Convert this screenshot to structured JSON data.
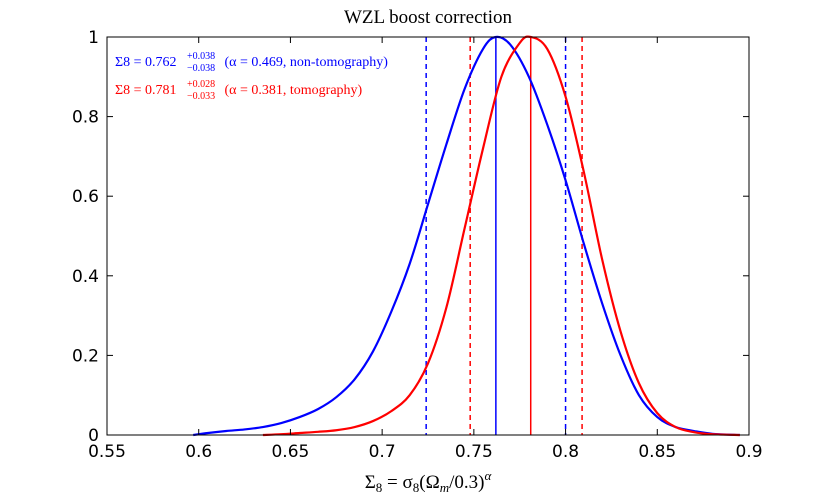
{
  "chart_data": {
    "type": "line",
    "title": "WZL boost correction",
    "xlabel": "Σ8 = σ8(Ωm/0.3)^α",
    "ylabel": "",
    "xlim": [
      0.55,
      0.9
    ],
    "ylim": [
      0,
      1
    ],
    "xticks": [
      "0.55",
      "0.6",
      "0.65",
      "0.7",
      "0.75",
      "0.8",
      "0.85",
      "0.9"
    ],
    "yticks": [
      "0",
      "0.2",
      "0.4",
      "0.6",
      "0.8",
      "1"
    ],
    "grid": false,
    "legend_placement": "top-left",
    "series": [
      {
        "name": "non-tomography",
        "color": "#0000ff",
        "legend_prefix": "Σ8 = 0.762",
        "legend_sup": "+0.038",
        "legend_sub": "−0.038",
        "legend_suffix": " (α = 0.469, non-tomography)",
        "median": 0.762,
        "lower": 0.724,
        "upper": 0.8,
        "x": [
          0.597,
          0.605,
          0.615,
          0.625,
          0.635,
          0.645,
          0.655,
          0.665,
          0.675,
          0.685,
          0.695,
          0.705,
          0.715,
          0.725,
          0.735,
          0.745,
          0.755,
          0.762,
          0.77,
          0.78,
          0.79,
          0.8,
          0.81,
          0.82,
          0.83,
          0.84,
          0.85,
          0.86,
          0.87,
          0.88,
          0.895
        ],
        "y": [
          0.0,
          0.005,
          0.01,
          0.014,
          0.02,
          0.03,
          0.045,
          0.065,
          0.095,
          0.14,
          0.21,
          0.31,
          0.43,
          0.58,
          0.73,
          0.87,
          0.97,
          1.0,
          0.98,
          0.9,
          0.78,
          0.64,
          0.48,
          0.33,
          0.2,
          0.1,
          0.045,
          0.02,
          0.01,
          0.003,
          0.0
        ]
      },
      {
        "name": "tomography",
        "color": "#ff0000",
        "legend_prefix": "Σ8 = 0.781",
        "legend_sup": "+0.028",
        "legend_sub": "−0.033",
        "legend_suffix": " (α = 0.381, tomography)",
        "median": 0.781,
        "lower": 0.748,
        "upper": 0.809,
        "x": [
          0.635,
          0.645,
          0.655,
          0.665,
          0.675,
          0.685,
          0.695,
          0.705,
          0.715,
          0.725,
          0.735,
          0.745,
          0.755,
          0.765,
          0.775,
          0.781,
          0.79,
          0.8,
          0.81,
          0.82,
          0.83,
          0.84,
          0.85,
          0.86,
          0.87,
          0.88,
          0.895
        ],
        "y": [
          0.0,
          0.002,
          0.005,
          0.008,
          0.012,
          0.02,
          0.035,
          0.06,
          0.1,
          0.18,
          0.32,
          0.52,
          0.72,
          0.9,
          0.985,
          1.0,
          0.97,
          0.85,
          0.66,
          0.44,
          0.26,
          0.13,
          0.055,
          0.02,
          0.007,
          0.002,
          0.0
        ]
      }
    ]
  }
}
